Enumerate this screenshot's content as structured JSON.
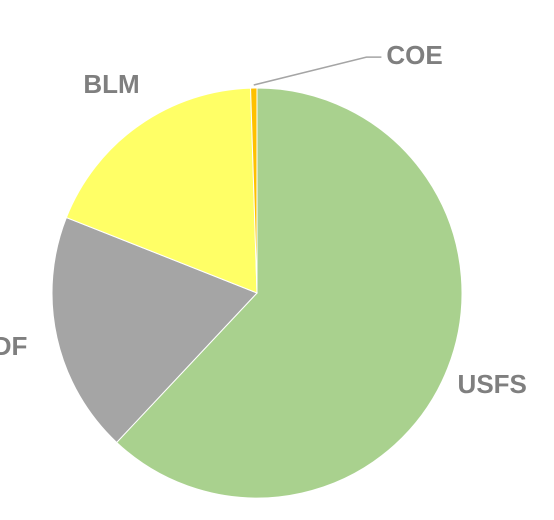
{
  "chart_data": {
    "type": "pie",
    "categories": [
      "USFS",
      "DF",
      "BLM",
      "COE"
    ],
    "values": [
      62,
      19,
      18.5,
      0.5
    ],
    "colors": [
      "#a9d18e",
      "#a5a5a5",
      "#ffff66",
      "#ffc000"
    ]
  }
}
